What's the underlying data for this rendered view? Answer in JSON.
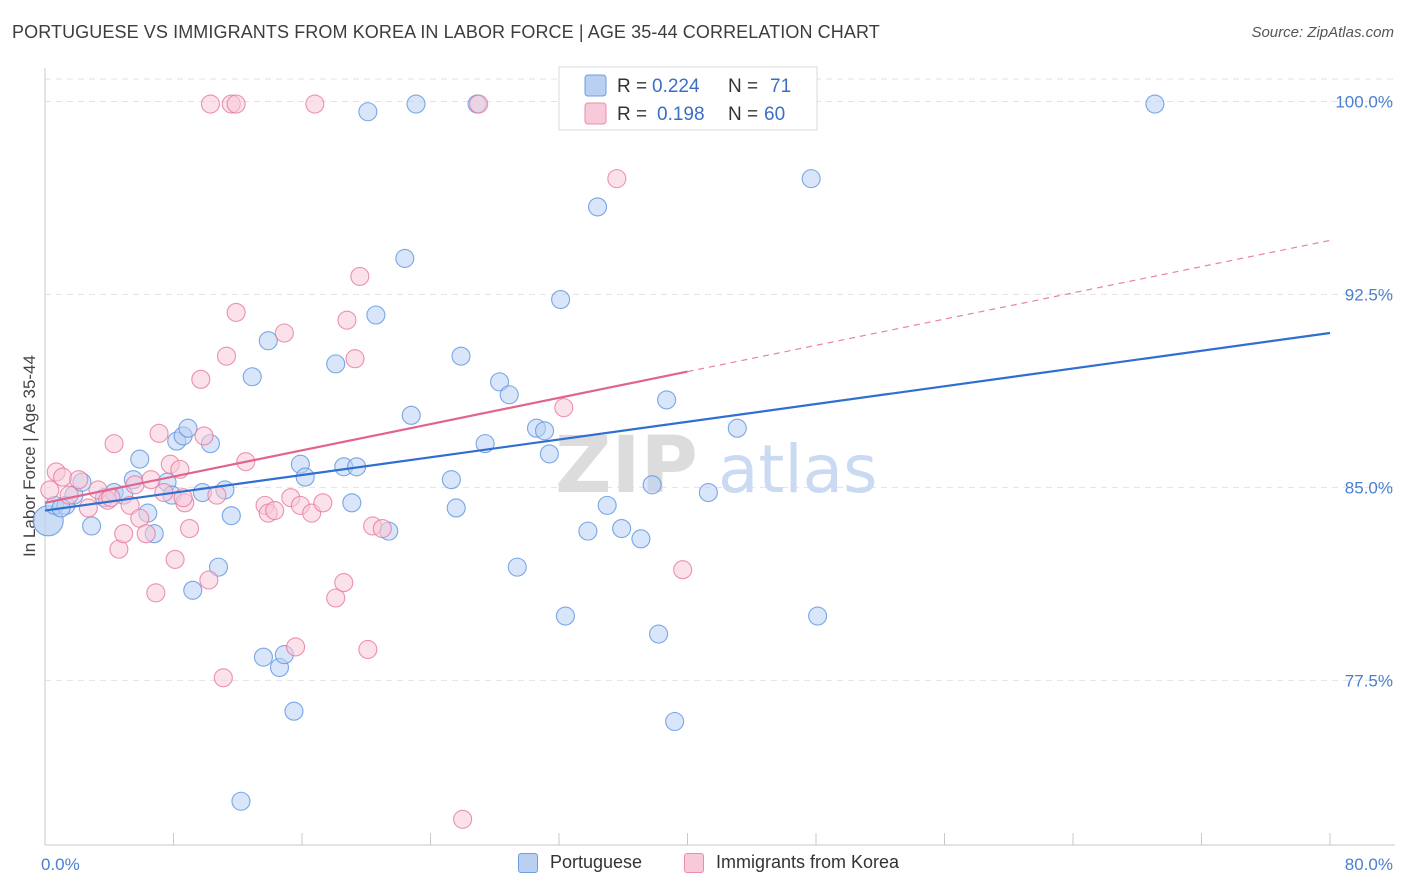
{
  "header": {
    "title": "PORTUGUESE VS IMMIGRANTS FROM KOREA IN LABOR FORCE | AGE 35-44 CORRELATION CHART",
    "source": "Source: ZipAtlas.com"
  },
  "watermark": {
    "part1": "ZIP",
    "part2": "atlas"
  },
  "legend": {
    "r_label": "R =",
    "n_label": "N =",
    "series": [
      {
        "r": "0.224",
        "n": "71"
      },
      {
        "r": "0.198",
        "n": "60"
      }
    ]
  },
  "bottom_legend": [
    {
      "label": "Portuguese",
      "fill": "#b9d0f2",
      "stroke": "#6f9ee0"
    },
    {
      "label": "Immigrants from Korea",
      "fill": "#f8c9d8",
      "stroke": "#e98eab"
    }
  ],
  "chart_data": {
    "type": "scatter",
    "title": "PORTUGUESE VS IMMIGRANTS FROM KOREA IN LABOR FORCE | AGE 35-44 CORRELATION CHART",
    "ylabel": "In Labor Force | Age 35-44",
    "xlabel": "",
    "xlim": [
      0,
      80
    ],
    "ylim": [
      71.1,
      101.3
    ],
    "x_tick_labels": [
      {
        "value": 0,
        "label": "0.0%"
      },
      {
        "value": 80,
        "label": "80.0%"
      }
    ],
    "y_tick_labels": [
      {
        "value": 100,
        "label": "100.0%"
      },
      {
        "value": 92.5,
        "label": "92.5%"
      },
      {
        "value": 85,
        "label": "85.0%"
      },
      {
        "value": 77.5,
        "label": "77.5%"
      }
    ],
    "grid": true,
    "legend_position": "top-center",
    "series": [
      {
        "name": "Portuguese",
        "color": "#5b93e0",
        "fill": "#b9d0f2",
        "line_color": "#2f6fd0",
        "trend": {
          "x0": 0,
          "y0": 84.1,
          "x1": 80,
          "y1": 91.0,
          "dashed_to": 80
        },
        "points": [
          [
            0.2,
            83.7
          ],
          [
            0.6,
            84.3
          ],
          [
            1.3,
            84.3
          ],
          [
            1.8,
            84.7
          ],
          [
            2.3,
            85.2
          ],
          [
            2.9,
            83.5
          ],
          [
            3.7,
            84.6
          ],
          [
            4.3,
            84.8
          ],
          [
            4.9,
            84.7
          ],
          [
            5.5,
            85.3
          ],
          [
            5.9,
            86.1
          ],
          [
            6.4,
            84.0
          ],
          [
            6.8,
            83.2
          ],
          [
            7.6,
            85.2
          ],
          [
            7.9,
            84.7
          ],
          [
            8.2,
            86.8
          ],
          [
            8.6,
            87.0
          ],
          [
            8.9,
            87.3
          ],
          [
            9.2,
            81.0
          ],
          [
            9.8,
            84.8
          ],
          [
            10.3,
            86.7
          ],
          [
            10.8,
            81.9
          ],
          [
            11.2,
            84.9
          ],
          [
            11.6,
            83.9
          ],
          [
            12.2,
            72.8
          ],
          [
            12.9,
            89.3
          ],
          [
            13.6,
            78.4
          ],
          [
            13.9,
            90.7
          ],
          [
            14.6,
            78.0
          ],
          [
            14.9,
            78.5
          ],
          [
            15.5,
            76.3
          ],
          [
            15.9,
            85.9
          ],
          [
            16.2,
            85.4
          ],
          [
            18.1,
            89.8
          ],
          [
            18.6,
            85.8
          ],
          [
            19.1,
            84.4
          ],
          [
            19.4,
            85.8
          ],
          [
            20.1,
            99.6
          ],
          [
            20.6,
            91.7
          ],
          [
            21.4,
            83.3
          ],
          [
            22.4,
            93.9
          ],
          [
            22.8,
            87.8
          ],
          [
            23.1,
            99.9
          ],
          [
            25.3,
            85.3
          ],
          [
            25.6,
            84.2
          ],
          [
            25.9,
            90.1
          ],
          [
            26.9,
            99.9
          ],
          [
            27.4,
            86.7
          ],
          [
            28.3,
            89.1
          ],
          [
            28.9,
            88.6
          ],
          [
            29.4,
            81.9
          ],
          [
            30.6,
            87.3
          ],
          [
            31.1,
            87.2
          ],
          [
            31.4,
            86.3
          ],
          [
            32.1,
            92.3
          ],
          [
            32.4,
            80.0
          ],
          [
            33.8,
            83.3
          ],
          [
            34.4,
            95.9
          ],
          [
            35.0,
            84.3
          ],
          [
            35.9,
            83.4
          ],
          [
            37.1,
            83.0
          ],
          [
            37.8,
            85.1
          ],
          [
            38.2,
            79.3
          ],
          [
            38.7,
            88.4
          ],
          [
            39.2,
            75.9
          ],
          [
            41.3,
            84.8
          ],
          [
            43.1,
            87.3
          ],
          [
            47.7,
            97.0
          ],
          [
            48.1,
            80.0
          ],
          [
            69.1,
            99.9
          ],
          [
            1.0,
            84.2
          ]
        ]
      },
      {
        "name": "Immigrants from Korea",
        "color": "#e9789c",
        "fill": "#f8c9d8",
        "line_color": "#e0648e",
        "trend": {
          "x0": 0,
          "y0": 84.4,
          "x1": 40,
          "y1": 89.5,
          "dashed_to": 80
        },
        "points": [
          [
            0.3,
            84.9
          ],
          [
            0.7,
            85.6
          ],
          [
            1.1,
            85.4
          ],
          [
            1.5,
            84.7
          ],
          [
            2.1,
            85.3
          ],
          [
            2.7,
            84.2
          ],
          [
            3.3,
            84.9
          ],
          [
            3.9,
            84.5
          ],
          [
            4.3,
            86.7
          ],
          [
            4.6,
            82.6
          ],
          [
            4.9,
            83.2
          ],
          [
            5.3,
            84.3
          ],
          [
            5.6,
            85.1
          ],
          [
            5.9,
            83.8
          ],
          [
            6.3,
            83.2
          ],
          [
            6.6,
            85.3
          ],
          [
            6.9,
            80.9
          ],
          [
            7.1,
            87.1
          ],
          [
            7.4,
            84.8
          ],
          [
            7.8,
            85.9
          ],
          [
            8.1,
            82.2
          ],
          [
            8.4,
            85.7
          ],
          [
            8.7,
            84.4
          ],
          [
            9.0,
            83.4
          ],
          [
            9.7,
            89.2
          ],
          [
            9.9,
            87.0
          ],
          [
            10.2,
            81.4
          ],
          [
            10.7,
            84.7
          ],
          [
            11.1,
            77.6
          ],
          [
            11.3,
            90.1
          ],
          [
            11.9,
            91.8
          ],
          [
            12.5,
            86.0
          ],
          [
            13.7,
            84.3
          ],
          [
            13.9,
            84.0
          ],
          [
            14.3,
            84.1
          ],
          [
            14.9,
            91.0
          ],
          [
            15.3,
            84.6
          ],
          [
            15.6,
            78.8
          ],
          [
            15.9,
            84.3
          ],
          [
            16.6,
            84.0
          ],
          [
            17.3,
            84.4
          ],
          [
            18.1,
            80.7
          ],
          [
            18.6,
            81.3
          ],
          [
            18.8,
            91.5
          ],
          [
            19.3,
            90.0
          ],
          [
            19.6,
            93.2
          ],
          [
            20.1,
            78.7
          ],
          [
            20.4,
            83.5
          ],
          [
            21.0,
            83.4
          ],
          [
            10.3,
            99.9
          ],
          [
            11.6,
            99.9
          ],
          [
            16.8,
            99.9
          ],
          [
            27.0,
            99.9
          ],
          [
            32.3,
            88.1
          ],
          [
            35.6,
            97.0
          ],
          [
            39.7,
            81.8
          ],
          [
            26.0,
            72.1
          ],
          [
            8.6,
            84.6
          ],
          [
            11.9,
            99.9
          ],
          [
            4.1,
            84.6
          ]
        ]
      }
    ]
  }
}
